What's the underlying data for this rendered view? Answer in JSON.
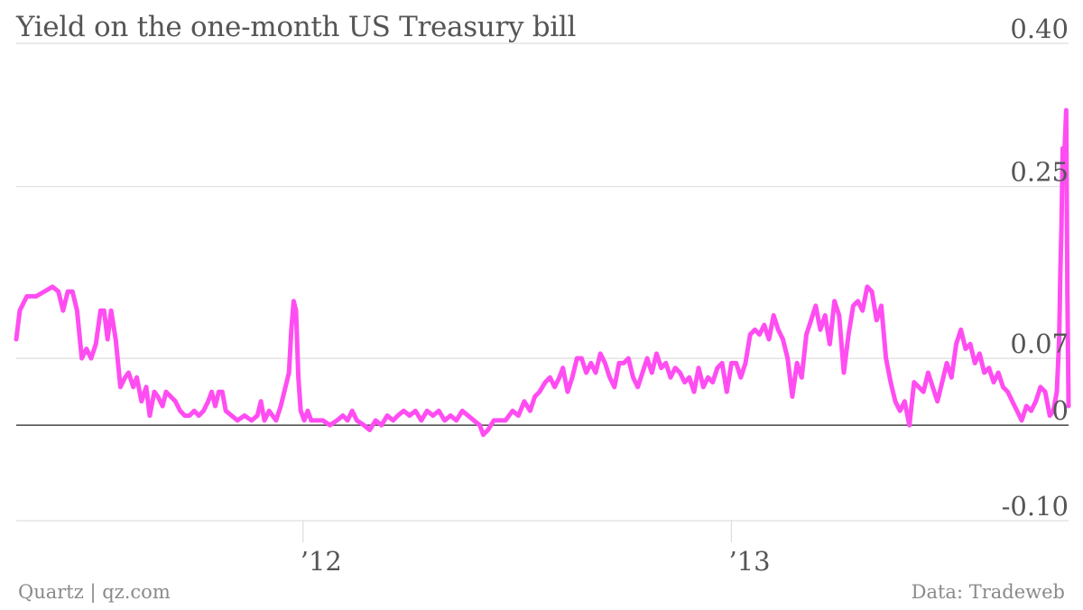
{
  "chart_data": {
    "type": "line",
    "title": "Yield on the one-month US Treasury bill",
    "xlabel": "",
    "ylabel": "",
    "x_ticks": [
      "’12",
      "’13"
    ],
    "y_ticks": [
      "0.40",
      "0.25",
      "0.07",
      "0",
      "-0.10"
    ],
    "ylim": [
      -0.1,
      0.4
    ],
    "grid": true,
    "legend": "none",
    "x_domain": [
      "2011-05-01",
      "2013-10-16"
    ],
    "series": [
      {
        "color": "#ff4df2",
        "points": [
          [
            "2011-05-01",
            0.09
          ],
          [
            "2011-05-04",
            0.12
          ],
          [
            "2011-05-10",
            0.135
          ],
          [
            "2011-05-18",
            0.135
          ],
          [
            "2011-05-25",
            0.14
          ],
          [
            "2011-06-01",
            0.145
          ],
          [
            "2011-06-06",
            0.14
          ],
          [
            "2011-06-10",
            0.12
          ],
          [
            "2011-06-14",
            0.14
          ],
          [
            "2011-06-18",
            0.14
          ],
          [
            "2011-06-22",
            0.12
          ],
          [
            "2011-06-26",
            0.07
          ],
          [
            "2011-06-30",
            0.08
          ],
          [
            "2011-07-04",
            0.07
          ],
          [
            "2011-07-08",
            0.085
          ],
          [
            "2011-07-12",
            0.12
          ],
          [
            "2011-07-15",
            0.12
          ],
          [
            "2011-07-18",
            0.09
          ],
          [
            "2011-07-21",
            0.12
          ],
          [
            "2011-07-25",
            0.09
          ],
          [
            "2011-07-29",
            0.04
          ],
          [
            "2011-08-02",
            0.05
          ],
          [
            "2011-08-05",
            0.055
          ],
          [
            "2011-08-09",
            0.04
          ],
          [
            "2011-08-12",
            0.05
          ],
          [
            "2011-08-16",
            0.025
          ],
          [
            "2011-08-20",
            0.04
          ],
          [
            "2011-08-23",
            0.01
          ],
          [
            "2011-08-27",
            0.035
          ],
          [
            "2011-08-30",
            0.03
          ],
          [
            "2011-09-03",
            0.02
          ],
          [
            "2011-09-06",
            0.035
          ],
          [
            "2011-09-10",
            0.03
          ],
          [
            "2011-09-14",
            0.025
          ],
          [
            "2011-09-18",
            0.015
          ],
          [
            "2011-09-22",
            0.01
          ],
          [
            "2011-09-26",
            0.01
          ],
          [
            "2011-09-30",
            0.015
          ],
          [
            "2011-10-04",
            0.01
          ],
          [
            "2011-10-08",
            0.015
          ],
          [
            "2011-10-12",
            0.025
          ],
          [
            "2011-10-15",
            0.035
          ],
          [
            "2011-10-18",
            0.02
          ],
          [
            "2011-10-21",
            0.035
          ],
          [
            "2011-10-24",
            0.035
          ],
          [
            "2011-10-27",
            0.015
          ],
          [
            "2011-11-01",
            0.01
          ],
          [
            "2011-11-06",
            0.005
          ],
          [
            "2011-11-12",
            0.01
          ],
          [
            "2011-11-18",
            0.005
          ],
          [
            "2011-11-23",
            0.01
          ],
          [
            "2011-11-26",
            0.025
          ],
          [
            "2011-11-29",
            0.005
          ],
          [
            "2011-12-03",
            0.015
          ],
          [
            "2011-12-06",
            0.01
          ],
          [
            "2011-12-09",
            0.005
          ],
          [
            "2011-12-13",
            0.02
          ],
          [
            "2011-12-17",
            0.04
          ],
          [
            "2011-12-20",
            0.055
          ],
          [
            "2011-12-22",
            0.1
          ],
          [
            "2011-12-24",
            0.13
          ],
          [
            "2011-12-26",
            0.12
          ],
          [
            "2011-12-28",
            0.05
          ],
          [
            "2011-12-30",
            0.015
          ],
          [
            "2012-01-02",
            0.005
          ],
          [
            "2012-01-05",
            0.015
          ],
          [
            "2012-01-08",
            0.005
          ],
          [
            "2012-01-12",
            0.005
          ],
          [
            "2012-01-18",
            0.005
          ],
          [
            "2012-01-24",
            0.0
          ],
          [
            "2012-01-30",
            0.005
          ],
          [
            "2012-02-04",
            0.01
          ],
          [
            "2012-02-08",
            0.005
          ],
          [
            "2012-02-12",
            0.015
          ],
          [
            "2012-02-16",
            0.005
          ],
          [
            "2012-02-22",
            0.0
          ],
          [
            "2012-02-27",
            -0.005
          ],
          [
            "2012-03-03",
            0.005
          ],
          [
            "2012-03-08",
            0.0
          ],
          [
            "2012-03-13",
            0.01
          ],
          [
            "2012-03-18",
            0.005
          ],
          [
            "2012-03-22",
            0.01
          ],
          [
            "2012-03-27",
            0.015
          ],
          [
            "2012-04-01",
            0.01
          ],
          [
            "2012-04-06",
            0.015
          ],
          [
            "2012-04-11",
            0.005
          ],
          [
            "2012-04-16",
            0.015
          ],
          [
            "2012-04-21",
            0.01
          ],
          [
            "2012-04-26",
            0.015
          ],
          [
            "2012-05-01",
            0.005
          ],
          [
            "2012-05-06",
            0.01
          ],
          [
            "2012-05-11",
            0.005
          ],
          [
            "2012-05-16",
            0.015
          ],
          [
            "2012-05-21",
            0.01
          ],
          [
            "2012-05-26",
            0.005
          ],
          [
            "2012-05-31",
            0.0
          ],
          [
            "2012-06-03",
            -0.01
          ],
          [
            "2012-06-07",
            -0.005
          ],
          [
            "2012-06-12",
            0.005
          ],
          [
            "2012-06-17",
            0.005
          ],
          [
            "2012-06-22",
            0.005
          ],
          [
            "2012-06-28",
            0.015
          ],
          [
            "2012-07-03",
            0.01
          ],
          [
            "2012-07-08",
            0.025
          ],
          [
            "2012-07-13",
            0.015
          ],
          [
            "2012-07-17",
            0.03
          ],
          [
            "2012-07-21",
            0.035
          ],
          [
            "2012-07-26",
            0.045
          ],
          [
            "2012-07-30",
            0.05
          ],
          [
            "2012-08-03",
            0.04
          ],
          [
            "2012-08-07",
            0.05
          ],
          [
            "2012-08-10",
            0.06
          ],
          [
            "2012-08-14",
            0.035
          ],
          [
            "2012-08-18",
            0.05
          ],
          [
            "2012-08-22",
            0.07
          ],
          [
            "2012-08-26",
            0.07
          ],
          [
            "2012-08-30",
            0.055
          ],
          [
            "2012-09-03",
            0.065
          ],
          [
            "2012-09-07",
            0.055
          ],
          [
            "2012-09-11",
            0.075
          ],
          [
            "2012-09-15",
            0.065
          ],
          [
            "2012-09-19",
            0.05
          ],
          [
            "2012-09-23",
            0.04
          ],
          [
            "2012-09-27",
            0.065
          ],
          [
            "2012-10-01",
            0.065
          ],
          [
            "2012-10-05",
            0.07
          ],
          [
            "2012-10-09",
            0.05
          ],
          [
            "2012-10-13",
            0.04
          ],
          [
            "2012-10-17",
            0.055
          ],
          [
            "2012-10-21",
            0.07
          ],
          [
            "2012-10-25",
            0.055
          ],
          [
            "2012-10-29",
            0.075
          ],
          [
            "2012-11-02",
            0.06
          ],
          [
            "2012-11-06",
            0.065
          ],
          [
            "2012-11-10",
            0.05
          ],
          [
            "2012-11-14",
            0.06
          ],
          [
            "2012-11-18",
            0.055
          ],
          [
            "2012-11-22",
            0.045
          ],
          [
            "2012-11-26",
            0.05
          ],
          [
            "2012-11-30",
            0.035
          ],
          [
            "2012-12-04",
            0.06
          ],
          [
            "2012-12-08",
            0.04
          ],
          [
            "2012-12-12",
            0.05
          ],
          [
            "2012-12-16",
            0.045
          ],
          [
            "2012-12-20",
            0.06
          ],
          [
            "2012-12-24",
            0.065
          ],
          [
            "2012-12-28",
            0.035
          ],
          [
            "2013-01-01",
            0.065
          ],
          [
            "2013-01-05",
            0.065
          ],
          [
            "2013-01-09",
            0.05
          ],
          [
            "2013-01-13",
            0.065
          ],
          [
            "2013-01-17",
            0.095
          ],
          [
            "2013-01-21",
            0.1
          ],
          [
            "2013-01-25",
            0.095
          ],
          [
            "2013-01-29",
            0.105
          ],
          [
            "2013-02-02",
            0.09
          ],
          [
            "2013-02-06",
            0.115
          ],
          [
            "2013-02-10",
            0.1
          ],
          [
            "2013-02-14",
            0.09
          ],
          [
            "2013-02-18",
            0.07
          ],
          [
            "2013-02-22",
            0.03
          ],
          [
            "2013-02-26",
            0.065
          ],
          [
            "2013-03-02",
            0.05
          ],
          [
            "2013-03-06",
            0.095
          ],
          [
            "2013-03-10",
            0.11
          ],
          [
            "2013-03-14",
            0.125
          ],
          [
            "2013-03-18",
            0.1
          ],
          [
            "2013-03-22",
            0.115
          ],
          [
            "2013-03-26",
            0.085
          ],
          [
            "2013-03-30",
            0.13
          ],
          [
            "2013-04-03",
            0.115
          ],
          [
            "2013-04-07",
            0.055
          ],
          [
            "2013-04-11",
            0.095
          ],
          [
            "2013-04-15",
            0.125
          ],
          [
            "2013-04-19",
            0.13
          ],
          [
            "2013-04-23",
            0.12
          ],
          [
            "2013-04-27",
            0.145
          ],
          [
            "2013-05-01",
            0.14
          ],
          [
            "2013-05-05",
            0.11
          ],
          [
            "2013-05-09",
            0.125
          ],
          [
            "2013-05-13",
            0.07
          ],
          [
            "2013-05-17",
            0.045
          ],
          [
            "2013-05-21",
            0.025
          ],
          [
            "2013-05-25",
            0.015
          ],
          [
            "2013-05-29",
            0.025
          ],
          [
            "2013-06-02",
            0.0
          ],
          [
            "2013-06-06",
            0.045
          ],
          [
            "2013-06-10",
            0.04
          ],
          [
            "2013-06-14",
            0.035
          ],
          [
            "2013-06-18",
            0.055
          ],
          [
            "2013-06-22",
            0.04
          ],
          [
            "2013-06-26",
            0.025
          ],
          [
            "2013-06-30",
            0.045
          ],
          [
            "2013-07-04",
            0.065
          ],
          [
            "2013-07-08",
            0.05
          ],
          [
            "2013-07-12",
            0.085
          ],
          [
            "2013-07-16",
            0.1
          ],
          [
            "2013-07-20",
            0.08
          ],
          [
            "2013-07-24",
            0.085
          ],
          [
            "2013-07-28",
            0.065
          ],
          [
            "2013-08-01",
            0.075
          ],
          [
            "2013-08-05",
            0.055
          ],
          [
            "2013-08-09",
            0.06
          ],
          [
            "2013-08-13",
            0.045
          ],
          [
            "2013-08-17",
            0.055
          ],
          [
            "2013-08-21",
            0.04
          ],
          [
            "2013-08-25",
            0.035
          ],
          [
            "2013-08-29",
            0.025
          ],
          [
            "2013-09-02",
            0.015
          ],
          [
            "2013-09-06",
            0.005
          ],
          [
            "2013-09-10",
            0.02
          ],
          [
            "2013-09-14",
            0.015
          ],
          [
            "2013-09-18",
            0.025
          ],
          [
            "2013-09-22",
            0.04
          ],
          [
            "2013-09-26",
            0.035
          ],
          [
            "2013-09-30",
            0.01
          ],
          [
            "2013-10-03",
            0.015
          ],
          [
            "2013-10-06",
            0.035
          ],
          [
            "2013-10-08",
            0.09
          ],
          [
            "2013-10-09",
            0.16
          ],
          [
            "2013-10-10",
            0.21
          ],
          [
            "2013-10-11",
            0.29
          ],
          [
            "2013-10-12",
            0.27
          ],
          [
            "2013-10-13",
            0.3
          ],
          [
            "2013-10-14",
            0.33
          ],
          [
            "2013-10-15",
            0.14
          ],
          [
            "2013-10-16",
            0.02
          ]
        ]
      }
    ]
  },
  "footer": {
    "source_left": "Quartz | qz.com",
    "source_right": "Data: Tradeweb"
  },
  "colors": {
    "line": "#ff4df2",
    "grid": "#dddddd",
    "zero_line": "#555555",
    "text": "#555555"
  }
}
